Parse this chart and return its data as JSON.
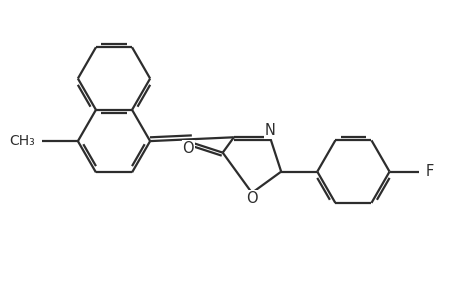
{
  "background_color": "#ffffff",
  "line_color": "#2d2d2d",
  "line_width": 1.6,
  "font_size": 10.5,
  "figsize": [
    4.6,
    3.0
  ],
  "dpi": 100,
  "xlim": [
    0,
    10
  ],
  "ylim": [
    0,
    6.5
  ]
}
